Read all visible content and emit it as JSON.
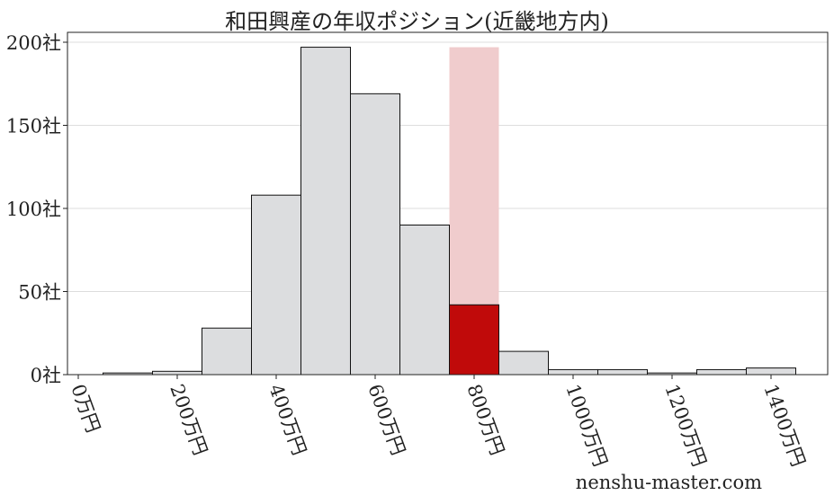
{
  "chart_data": {
    "type": "bar",
    "title": "和田興産の年収ポジション(近畿地方内)",
    "x": [
      100,
      200,
      300,
      400,
      500,
      600,
      700,
      800,
      900,
      1000,
      1100,
      1200,
      1300,
      1400
    ],
    "values": [
      1,
      2,
      28,
      108,
      197,
      169,
      90,
      42,
      14,
      3,
      3,
      1,
      3,
      4
    ],
    "highlight_x": 800,
    "bin_width": 100,
    "xlim": [
      -20,
      1520
    ],
    "ylim": [
      0,
      207
    ],
    "xticks": [
      0,
      200,
      400,
      600,
      800,
      1000,
      1200,
      1400
    ],
    "xtick_labels": [
      "0万円",
      "200万円",
      "400万円",
      "600万円",
      "800万円",
      "1000万円",
      "1200万円",
      "1400万円"
    ],
    "yticks": [
      0,
      50,
      100,
      150,
      200
    ],
    "ytick_labels": [
      "0社",
      "50社",
      "100社",
      "150社",
      "200社"
    ],
    "grid": "horizontal",
    "colors": {
      "bar": "#dcdddf",
      "highlight": "#c00a0a",
      "highlight_band": "#f0cccd",
      "edge": "#111111",
      "grid": "#dddddd"
    }
  },
  "watermark": "nenshu-master.com"
}
